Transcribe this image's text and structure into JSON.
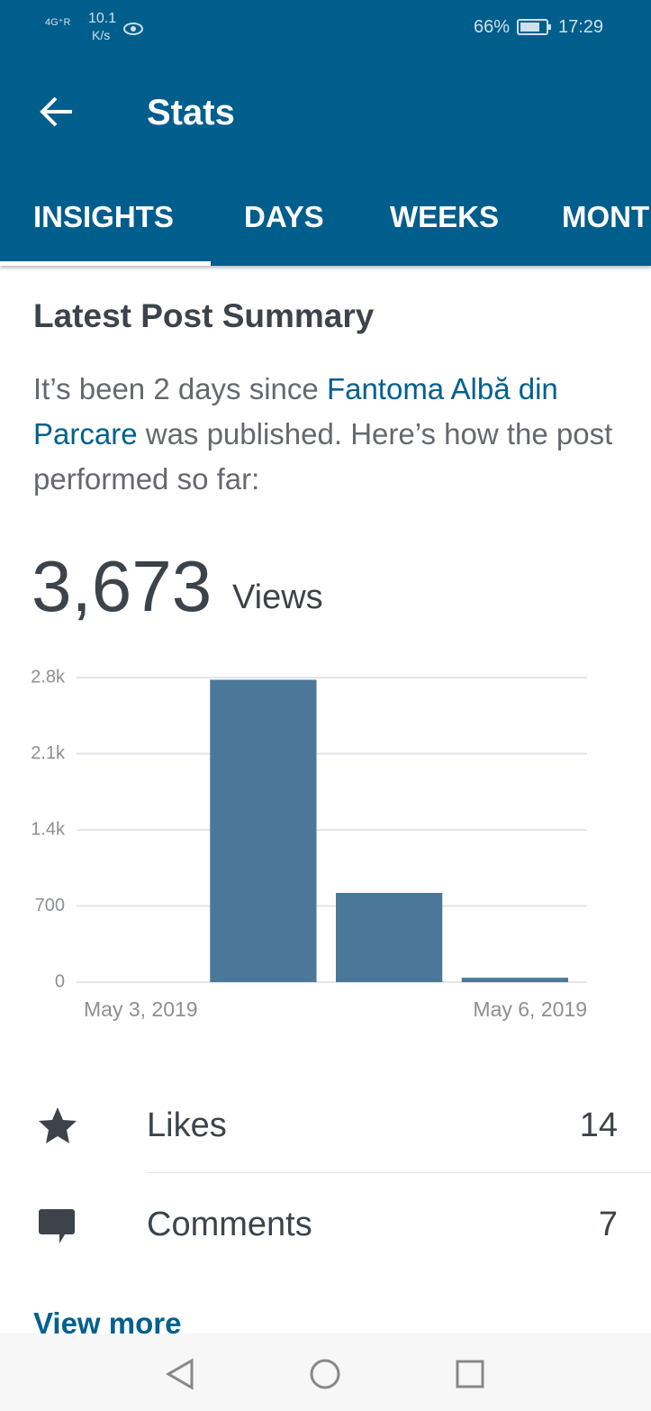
{
  "status_bar": {
    "network": "4G⁺R",
    "speed": "10.1",
    "speed_unit": "K/s",
    "battery": "66%",
    "time": "17:29"
  },
  "app_bar": {
    "title": "Stats"
  },
  "tabs": [
    "INSIGHTS",
    "DAYS",
    "WEEKS",
    "MONT"
  ],
  "card": {
    "title": "Latest Post Summary",
    "summary": {
      "before": "It’s been 2 days since ",
      "link": "Fantoma Albă din Parcare",
      "after": " was published. Here’s how the post performed so far:"
    },
    "views_count": "3,673",
    "views_label": "Views"
  },
  "chart_data": {
    "type": "bar",
    "categories": [
      "May 3, 2019",
      null,
      null,
      "May 6, 2019"
    ],
    "values": [
      0,
      2780,
      820,
      40
    ],
    "color": "#4b7899",
    "ylim": [
      0,
      2800
    ],
    "yticks": [
      0,
      700,
      {
        "value": 1400,
        "label": "1.4k"
      },
      {
        "value": 2100,
        "label": "2.1k"
      },
      {
        "value": 2800,
        "label": "2.8k"
      }
    ],
    "grid": true
  },
  "stats": [
    {
      "label": "Likes",
      "value": 14
    },
    {
      "label": "Comments",
      "value": 7
    }
  ],
  "view_more": "View more"
}
